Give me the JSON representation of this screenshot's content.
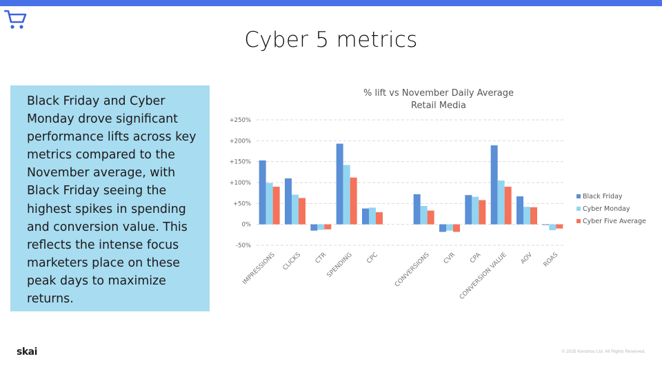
{
  "slide": {
    "title": "Cyber 5 metrics",
    "summary": "Black Friday and Cyber Monday drove significant performance lifts across key metrics compared to the November average, with Black Friday seeing the highest spikes in spending and conversion value. This reflects the intense focus marketers place on these peak days to maximize returns.",
    "logo_text": "skai",
    "copyright": "© 2025 Kenshoo Ltd. All Rights Reserved.",
    "accent_color": "#4a72e8",
    "box_color": "#a8dcf0",
    "icons": {
      "header": "shopping-cart-icon"
    }
  },
  "chart_data": {
    "type": "bar",
    "title": "% lift vs November Daily Average",
    "subtitle": "Retail Media",
    "xlabel": "",
    "ylabel": "",
    "ylim": [
      -50,
      250
    ],
    "yticks": [
      -50,
      0,
      50,
      100,
      150,
      200,
      250
    ],
    "ytick_labels": [
      "-50%",
      "0%",
      "+50%",
      "+100%",
      "+150%",
      "+200%",
      "+250%"
    ],
    "grid": true,
    "legend_position": "right",
    "categories": [
      "IMPRESSIONS",
      "CLICKS",
      "CTR",
      "SPENDING",
      "CPC",
      "",
      "CONVERSIONS",
      "CVR",
      "CPA",
      "CONVERSION VALUE",
      "AOV",
      "ROAS"
    ],
    "series": [
      {
        "name": "Black Friday",
        "color": "#5b8fd6",
        "values": [
          153,
          110,
          -15,
          193,
          38,
          null,
          72,
          -18,
          70,
          189,
          67,
          0
        ]
      },
      {
        "name": "Cyber Monday",
        "color": "#92d5f0",
        "values": [
          99,
          71,
          -13,
          142,
          40,
          null,
          44,
          -15,
          66,
          105,
          42,
          -14
        ]
      },
      {
        "name": "Cyber Five Average",
        "color": "#f5735a",
        "values": [
          90,
          63,
          -12,
          112,
          29,
          null,
          33,
          -18,
          58,
          90,
          41,
          -10
        ]
      }
    ]
  }
}
